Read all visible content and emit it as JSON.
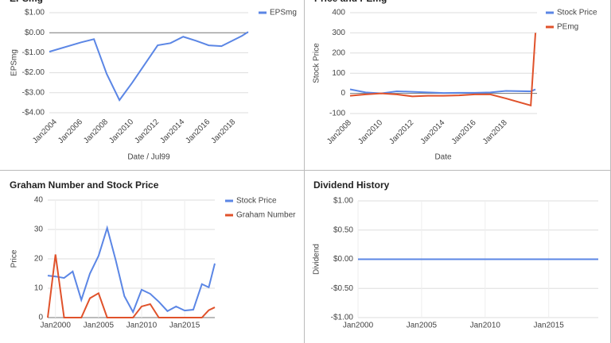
{
  "chart_data": [
    {
      "type": "line",
      "title": "EPSmg",
      "xlabel": "Date / Jul99",
      "ylabel": "EPSmg",
      "legend": "right",
      "grid": true,
      "xgrid": false,
      "x": [
        2003.5,
        2006,
        2007,
        2008,
        2009,
        2010,
        2012,
        2013,
        2014,
        2015,
        2016,
        2017,
        2018.6,
        2019.1
      ],
      "series": [
        {
          "name": "EPSmg",
          "color": "#5b86e5",
          "values": [
            -0.95,
            -0.48,
            -0.32,
            -2.06,
            -3.37,
            -2.5,
            -0.63,
            -0.52,
            -0.2,
            -0.4,
            -0.63,
            -0.67,
            -0.16,
            0.04
          ]
        }
      ],
      "xlim": [
        2003.5,
        2019.1
      ],
      "xticks": [
        {
          "value": 2004,
          "label": "Jan2004"
        },
        {
          "value": 2006,
          "label": "Jan2006"
        },
        {
          "value": 2008,
          "label": "Jan2008"
        },
        {
          "value": 2010,
          "label": "Jan2010"
        },
        {
          "value": 2012,
          "label": "Jan2012"
        },
        {
          "value": 2014,
          "label": "Jan2014"
        },
        {
          "value": 2016,
          "label": "Jan2016"
        },
        {
          "value": 2018,
          "label": "Jan2018"
        }
      ],
      "ylim": [
        -4,
        1
      ],
      "yticks": [
        {
          "value": 1,
          "label": "$1.00"
        },
        {
          "value": 0,
          "label": "$0.00"
        },
        {
          "value": -1,
          "label": "-$1.00"
        },
        {
          "value": -2,
          "label": "-$2.00"
        },
        {
          "value": -3,
          "label": "-$3.00"
        },
        {
          "value": -4,
          "label": "-$4.00"
        }
      ]
    },
    {
      "type": "line",
      "title": "Price and PEmg",
      "xlabel": "Date",
      "ylabel": "Stock Price",
      "legend": "right",
      "grid": true,
      "xgrid": false,
      "x": [
        2008,
        2009,
        2010,
        2011,
        2012,
        2013,
        2014,
        2015,
        2016,
        2017,
        2018,
        2019.6,
        2019.9
      ],
      "series": [
        {
          "name": "Stock Price",
          "color": "#5b86e5",
          "values": [
            20,
            5,
            0,
            10,
            8,
            5,
            2,
            3,
            3,
            5,
            12,
            10,
            20
          ]
        },
        {
          "name": "PEmg",
          "color": "#e0522b",
          "values": [
            -12,
            -5,
            0,
            -5,
            -15,
            -12,
            -12,
            -10,
            -5,
            -5,
            -25,
            -60,
            300
          ]
        }
      ],
      "xlim": [
        2008,
        2020
      ],
      "xticks": [
        {
          "value": 2008,
          "label": "Jan2008"
        },
        {
          "value": 2010,
          "label": "Jan2010"
        },
        {
          "value": 2012,
          "label": "Jan2012"
        },
        {
          "value": 2014,
          "label": "Jan2014"
        },
        {
          "value": 2016,
          "label": "Jan2016"
        },
        {
          "value": 2018,
          "label": "Jan2018"
        }
      ],
      "ylim": [
        -100,
        400
      ],
      "yticks": [
        400,
        300,
        200,
        100,
        0,
        -100
      ]
    },
    {
      "type": "line",
      "title": "Graham Number and Stock Price",
      "ylabel": "Price",
      "legend": "right",
      "grid": true,
      "xgrid": true,
      "x": [
        1999.1,
        2000,
        2001,
        2002,
        2003,
        2004,
        2005,
        2006,
        2007,
        2008,
        2009,
        2010,
        2011,
        2012,
        2013,
        2014,
        2015,
        2016,
        2017,
        2017.8,
        2018.5
      ],
      "series": [
        {
          "name": "Stock Price",
          "color": "#5b86e5",
          "values": [
            14.3,
            14,
            13.5,
            15.7,
            6,
            15,
            21,
            30.5,
            19.5,
            7.3,
            1.9,
            9.5,
            8.1,
            5.4,
            2.2,
            3.8,
            2.4,
            2.7,
            11.4,
            10.3,
            18.4
          ]
        },
        {
          "name": "Graham Number",
          "color": "#e0522b",
          "values": [
            0,
            21.5,
            0,
            0,
            0,
            6.6,
            8.3,
            0,
            0,
            0,
            0,
            3.8,
            4.6,
            0,
            0,
            0,
            0,
            0,
            0,
            2.5,
            3.5
          ]
        }
      ],
      "xlim": [
        1999.1,
        2018.5
      ],
      "xticks": [
        {
          "value": 2000,
          "label": "Jan2000"
        },
        {
          "value": 2005,
          "label": "Jan2005"
        },
        {
          "value": 2010,
          "label": "Jan2010"
        },
        {
          "value": 2015,
          "label": "Jan2015"
        }
      ],
      "ylim": [
        0,
        40
      ],
      "yticks": [
        0,
        10,
        20,
        30,
        40
      ]
    },
    {
      "type": "line",
      "title": "Dividend History",
      "ylabel": "Dividend",
      "grid": true,
      "xgrid": true,
      "x": [
        2000,
        2018.9
      ],
      "series": [
        {
          "color": "#5b86e5",
          "values": [
            0,
            0
          ]
        }
      ],
      "xlim": [
        2000,
        2018.9
      ],
      "xticks": [
        {
          "value": 2000,
          "label": "Jan2000"
        },
        {
          "value": 2005,
          "label": "Jan2005"
        },
        {
          "value": 2010,
          "label": "Jan2010"
        },
        {
          "value": 2015,
          "label": "Jan2015"
        }
      ],
      "ylim": [
        -1,
        1
      ],
      "yticks": [
        {
          "value": 1,
          "label": "$1.00"
        },
        {
          "value": 0.5,
          "label": "$0.50"
        },
        {
          "value": 0,
          "label": "$0.00"
        },
        {
          "value": -0.5,
          "label": "-$0.50"
        },
        {
          "value": -1,
          "label": "-$1.00"
        }
      ]
    }
  ]
}
